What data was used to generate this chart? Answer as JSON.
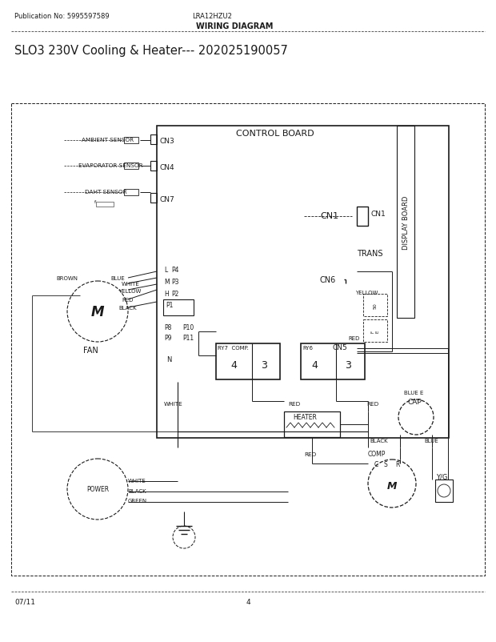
{
  "title": "SLO3 230V Cooling & Heater--- 202025190057",
  "pub_no": "Publication No: 5995597589",
  "model": "LRA12HZU2",
  "diagram_title": "WIRING DIAGRAM",
  "footer_left": "07/11",
  "footer_center": "4",
  "bg_color": "#ffffff",
  "line_color": "#1a1a1a",
  "text_color": "#1a1a1a"
}
